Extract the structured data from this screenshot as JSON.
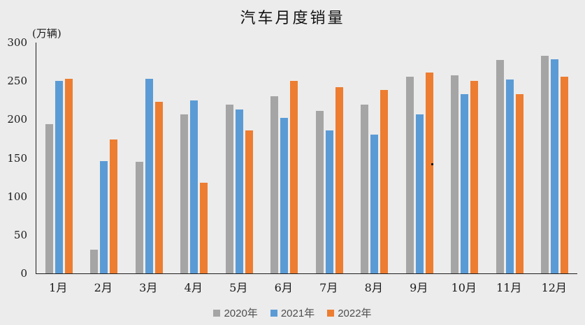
{
  "chart": {
    "title": "汽车月度销量",
    "unit_label": "(万辆)"
  },
  "colors": {
    "background": "#ECECEC",
    "axis_line": "#1F1F1F",
    "tick_text": "#1A1A1A",
    "legend_text": "#4D4D4D",
    "series_2020": "#A5A5A5",
    "series_2021": "#5B9BD5",
    "series_2022": "#ED7D31"
  },
  "chart_data": {
    "type": "bar",
    "title": "汽车月度销量",
    "xlabel": "",
    "ylabel": "(万辆)",
    "categories": [
      "1月",
      "2月",
      "3月",
      "4月",
      "5月",
      "6月",
      "7月",
      "8月",
      "9月",
      "10月",
      "11月",
      "12月"
    ],
    "series": [
      {
        "name": "2020年",
        "color": "#A5A5A5",
        "values": [
          194,
          31,
          145,
          207,
          219,
          230,
          211,
          219,
          256,
          257,
          277,
          283
        ]
      },
      {
        "name": "2021年",
        "color": "#5B9BD5",
        "values": [
          250,
          146,
          253,
          225,
          213,
          202,
          186,
          180,
          207,
          233,
          252,
          278
        ]
      },
      {
        "name": "2022年",
        "color": "#ED7D31",
        "values": [
          253,
          174,
          223,
          118,
          186,
          250,
          242,
          238,
          261,
          250,
          233,
          256
        ]
      }
    ],
    "ylim": [
      0,
      300
    ],
    "yticks": [
      0,
      50,
      100,
      150,
      200,
      250,
      300
    ],
    "grid": false,
    "legend_position": "bottom"
  }
}
